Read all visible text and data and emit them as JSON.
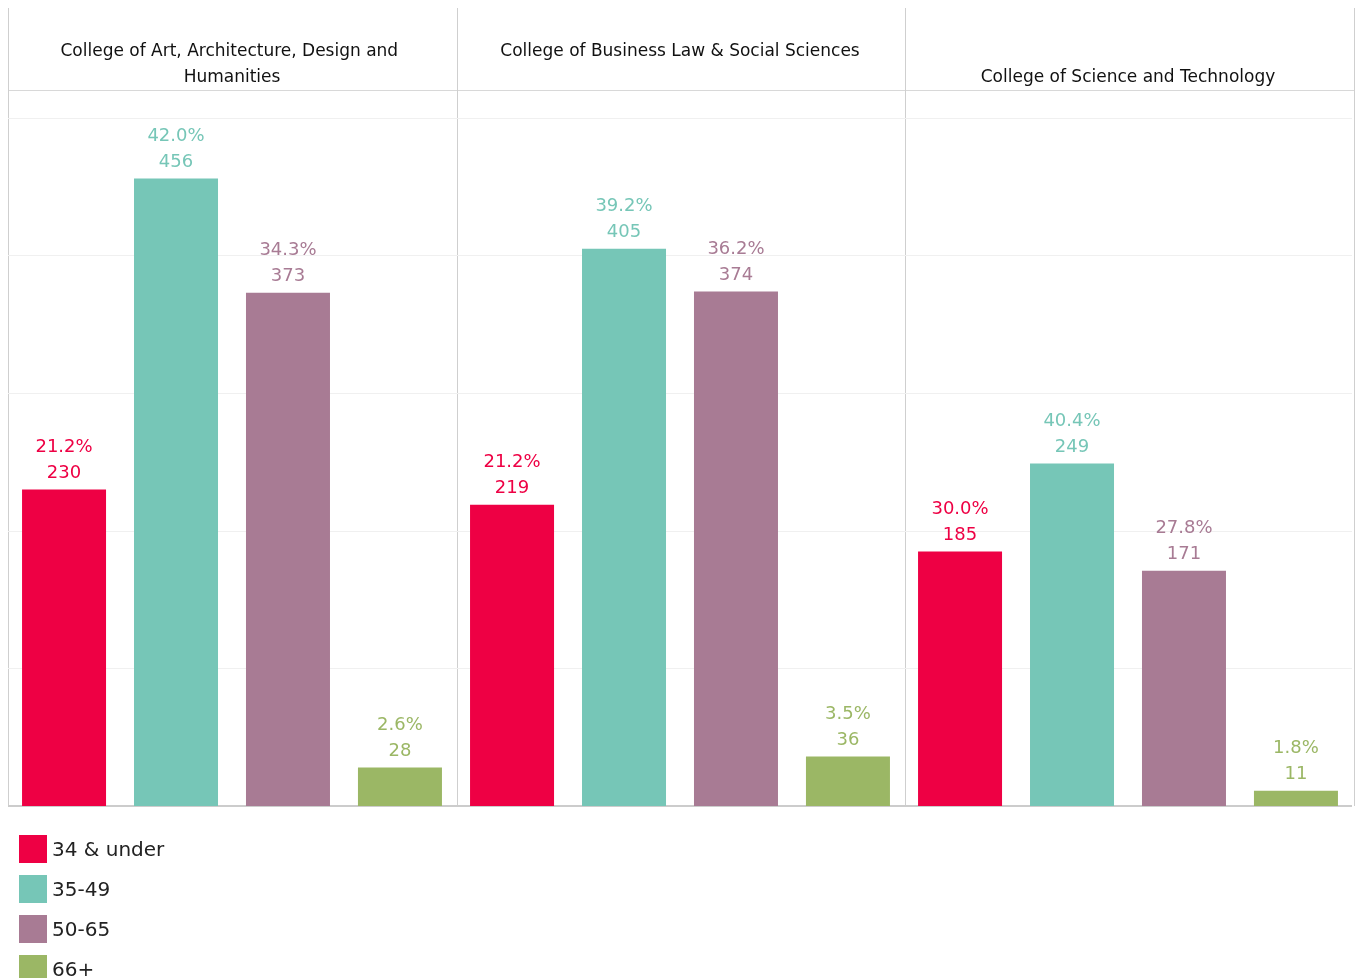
{
  "chart_data": [
    {
      "type": "bar",
      "title": "College of Art, Architecture, Design and Humanities",
      "categories": [
        null
      ],
      "ylim": [
        0,
        500
      ],
      "yticks": [
        {
          "value": 0,
          "label": null
        },
        {
          "value": 100,
          "label": null
        },
        {
          "value": 200,
          "label": null
        },
        {
          "value": 300,
          "label": null
        },
        {
          "value": 400,
          "label": null
        },
        {
          "value": 500,
          "label": null
        }
      ],
      "grid": "y",
      "legend": "bottom left",
      "tick_labels": false,
      "series": [
        {
          "name": "34 & under",
          "color": "#ee0044",
          "values": [
            230
          ],
          "value_labels": [
            "21.2%\n230"
          ]
        },
        {
          "name": "35-49",
          "color": "#76c6b7",
          "values": [
            456
          ],
          "value_labels": [
            "42.0%\n456"
          ]
        },
        {
          "name": "50-65",
          "color": "#a87b94",
          "values": [
            373
          ],
          "value_labels": [
            "34.3%\n373"
          ]
        },
        {
          "name": "66+",
          "color": "#9bb765",
          "values": [
            28
          ],
          "value_labels": [
            "2.6%\n28"
          ]
        }
      ]
    },
    {
      "type": "bar",
      "title": "College of Business Law & Social Sciences",
      "categories": [
        null
      ],
      "ylim": [
        0,
        500
      ],
      "yticks": [
        {
          "value": 0,
          "label": null
        },
        {
          "value": 100,
          "label": null
        },
        {
          "value": 200,
          "label": null
        },
        {
          "value": 300,
          "label": null
        },
        {
          "value": 400,
          "label": null
        },
        {
          "value": 500,
          "label": null
        }
      ],
      "grid": "y",
      "tick_labels": false,
      "series": [
        {
          "color": "#ee0044",
          "values": [
            219
          ],
          "value_labels": [
            "21.2%\n219"
          ]
        },
        {
          "color": "#76c6b7",
          "values": [
            405
          ],
          "value_labels": [
            "39.2%\n405"
          ]
        },
        {
          "color": "#a87b94",
          "values": [
            374
          ],
          "value_labels": [
            "36.2%\n374"
          ]
        },
        {
          "color": "#9bb765",
          "values": [
            36
          ],
          "value_labels": [
            "3.5%\n36"
          ]
        }
      ]
    },
    {
      "type": "bar",
      "title": "College of Science and Technology",
      "categories": [
        null
      ],
      "ylim": [
        0,
        500
      ],
      "yticks": [
        {
          "value": 0,
          "label": null
        },
        {
          "value": 100,
          "label": null
        },
        {
          "value": 200,
          "label": null
        },
        {
          "value": 300,
          "label": null
        },
        {
          "value": 400,
          "label": null
        },
        {
          "value": 500,
          "label": null
        }
      ],
      "grid": "y",
      "tick_labels": false,
      "series": [
        {
          "color": "#ee0044",
          "values": [
            185
          ],
          "value_labels": [
            "30.0%\n185"
          ]
        },
        {
          "color": "#76c6b7",
          "values": [
            249
          ],
          "value_labels": [
            "40.4%\n249"
          ]
        },
        {
          "color": "#a87b94",
          "values": [
            171
          ],
          "value_labels": [
            "27.8%\n171"
          ]
        },
        {
          "color": "#9bb765",
          "values": [
            11
          ],
          "value_labels": [
            "1.8%\n11"
          ]
        }
      ]
    }
  ]
}
